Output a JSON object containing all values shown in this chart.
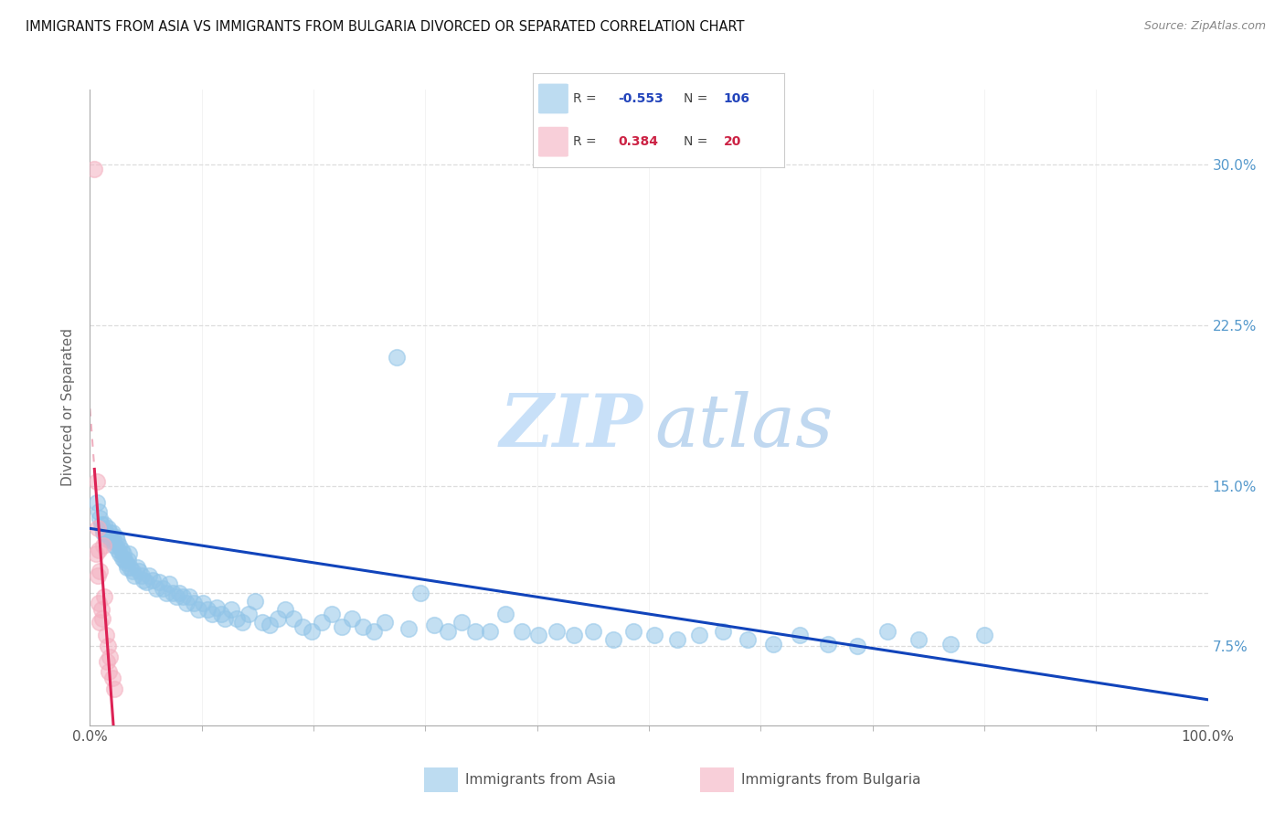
{
  "title": "IMMIGRANTS FROM ASIA VS IMMIGRANTS FROM BULGARIA DIVORCED OR SEPARATED CORRELATION CHART",
  "source": "Source: ZipAtlas.com",
  "ylabel": "Divorced or Separated",
  "x_lim": [
    0.0,
    1.0
  ],
  "y_lim": [
    0.038,
    0.335
  ],
  "y_ticks": [
    0.075,
    0.1,
    0.15,
    0.225,
    0.3
  ],
  "y_tick_labels": [
    "7.5%",
    "",
    "15.0%",
    "22.5%",
    "30.0%"
  ],
  "legend_blue_R": "-0.553",
  "legend_blue_N": "106",
  "legend_pink_R": "0.384",
  "legend_pink_N": "20",
  "legend_label_blue": "Immigrants from Asia",
  "legend_label_pink": "Immigrants from Bulgaria",
  "blue_color": "#92C5E8",
  "pink_color": "#F4B0C0",
  "trend_blue_color": "#1144BB",
  "trend_pink_color": "#DD2255",
  "trend_pink_dash_color": "#F0B0C0",
  "watermark_zip_color": "#C8E0F8",
  "watermark_atlas_color": "#C0D8F0",
  "blue_scatter_x": [
    0.006,
    0.008,
    0.009,
    0.01,
    0.011,
    0.012,
    0.013,
    0.014,
    0.015,
    0.016,
    0.017,
    0.018,
    0.019,
    0.02,
    0.021,
    0.022,
    0.023,
    0.024,
    0.025,
    0.026,
    0.027,
    0.028,
    0.029,
    0.03,
    0.031,
    0.032,
    0.033,
    0.034,
    0.035,
    0.036,
    0.038,
    0.04,
    0.042,
    0.044,
    0.046,
    0.048,
    0.05,
    0.053,
    0.056,
    0.059,
    0.062,
    0.065,
    0.068,
    0.071,
    0.074,
    0.077,
    0.08,
    0.083,
    0.086,
    0.089,
    0.093,
    0.097,
    0.101,
    0.105,
    0.109,
    0.113,
    0.117,
    0.121,
    0.126,
    0.131,
    0.136,
    0.142,
    0.148,
    0.154,
    0.161,
    0.168,
    0.175,
    0.182,
    0.19,
    0.198,
    0.207,
    0.216,
    0.225,
    0.234,
    0.244,
    0.254,
    0.264,
    0.274,
    0.285,
    0.296,
    0.308,
    0.32,
    0.332,
    0.345,
    0.358,
    0.372,
    0.386,
    0.401,
    0.417,
    0.433,
    0.45,
    0.468,
    0.486,
    0.505,
    0.525,
    0.545,
    0.566,
    0.588,
    0.611,
    0.635,
    0.66,
    0.686,
    0.713,
    0.741,
    0.77,
    0.8
  ],
  "blue_scatter_y": [
    0.142,
    0.138,
    0.135,
    0.132,
    0.13,
    0.128,
    0.132,
    0.128,
    0.125,
    0.13,
    0.126,
    0.128,
    0.124,
    0.128,
    0.125,
    0.122,
    0.126,
    0.124,
    0.12,
    0.122,
    0.118,
    0.12,
    0.116,
    0.118,
    0.115,
    0.114,
    0.112,
    0.115,
    0.118,
    0.112,
    0.11,
    0.108,
    0.112,
    0.11,
    0.108,
    0.106,
    0.105,
    0.108,
    0.106,
    0.102,
    0.105,
    0.102,
    0.1,
    0.104,
    0.1,
    0.098,
    0.1,
    0.098,
    0.095,
    0.098,
    0.095,
    0.092,
    0.095,
    0.092,
    0.09,
    0.093,
    0.09,
    0.088,
    0.092,
    0.088,
    0.086,
    0.09,
    0.096,
    0.086,
    0.085,
    0.088,
    0.092,
    0.088,
    0.084,
    0.082,
    0.086,
    0.09,
    0.084,
    0.088,
    0.084,
    0.082,
    0.086,
    0.21,
    0.083,
    0.1,
    0.085,
    0.082,
    0.086,
    0.082,
    0.082,
    0.09,
    0.082,
    0.08,
    0.082,
    0.08,
    0.082,
    0.078,
    0.082,
    0.08,
    0.078,
    0.08,
    0.082,
    0.078,
    0.076,
    0.08,
    0.076,
    0.075,
    0.082,
    0.078,
    0.076,
    0.08
  ],
  "pink_scatter_x": [
    0.004,
    0.005,
    0.006,
    0.007,
    0.007,
    0.008,
    0.008,
    0.009,
    0.009,
    0.01,
    0.011,
    0.012,
    0.013,
    0.014,
    0.015,
    0.016,
    0.017,
    0.018,
    0.02,
    0.022
  ],
  "pink_scatter_y": [
    0.298,
    0.118,
    0.152,
    0.13,
    0.108,
    0.12,
    0.095,
    0.11,
    0.086,
    0.092,
    0.088,
    0.122,
    0.098,
    0.08,
    0.068,
    0.075,
    0.063,
    0.07,
    0.06,
    0.055
  ]
}
